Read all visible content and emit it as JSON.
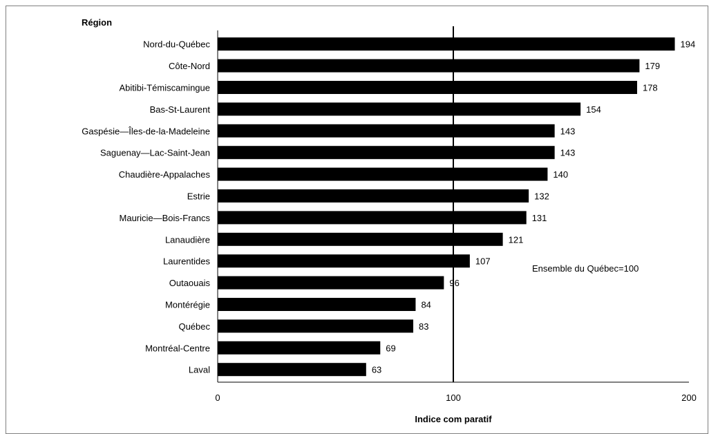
{
  "chart_data": {
    "type": "bar",
    "orientation": "horizontal",
    "category_axis_title": "Région",
    "xlabel": "Indice com paratif",
    "annotation": "Ensemble du Québec=100",
    "reference_line": 100,
    "xlim": [
      0,
      200
    ],
    "xticks": [
      "0",
      "100",
      "200"
    ],
    "categories": [
      "Nord-du-Québec",
      "Côte-Nord",
      "Abitibi-Témiscamingue",
      "Bas-St-Laurent",
      "Gaspésie—Îles-de-la-Madeleine",
      "Saguenay—Lac-Saint-Jean",
      "Chaudière-Appalaches",
      "Estrie",
      "Mauricie—Bois-Francs",
      "Lanaudière",
      "Laurentides",
      "Outaouais",
      "Montérégie",
      "Québec",
      "Montréal-Centre",
      "Laval"
    ],
    "values": [
      194,
      179,
      178,
      154,
      143,
      143,
      140,
      132,
      131,
      121,
      107,
      96,
      84,
      83,
      69,
      63
    ],
    "bar_color": "#000000",
    "grid": false
  }
}
